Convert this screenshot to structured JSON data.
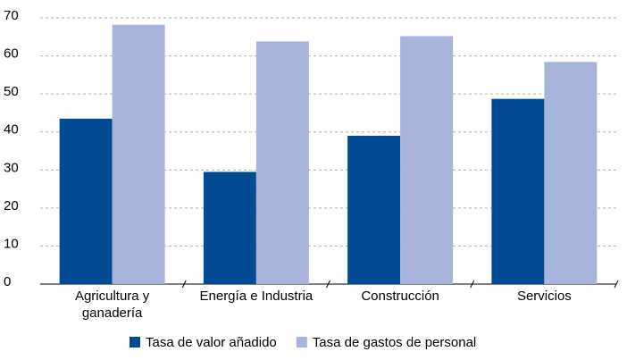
{
  "chart_data": {
    "type": "bar",
    "categories": [
      "Agricultura y ganadería",
      "Energía e Industria",
      "Construcción",
      "Servicios"
    ],
    "series": [
      {
        "name": "Tasa de valor añadido",
        "color": "#004b93",
        "values": [
          43.5,
          29.5,
          39,
          48.7
        ]
      },
      {
        "name": "Tasa de gastos de personal",
        "color": "#a9b4dc",
        "values": [
          68.2,
          63.8,
          65.2,
          58.4
        ]
      }
    ],
    "ylim": [
      0,
      70
    ],
    "yticks": [
      0,
      10,
      20,
      30,
      40,
      50,
      60,
      70
    ],
    "grid": true,
    "legend": "bottom"
  }
}
